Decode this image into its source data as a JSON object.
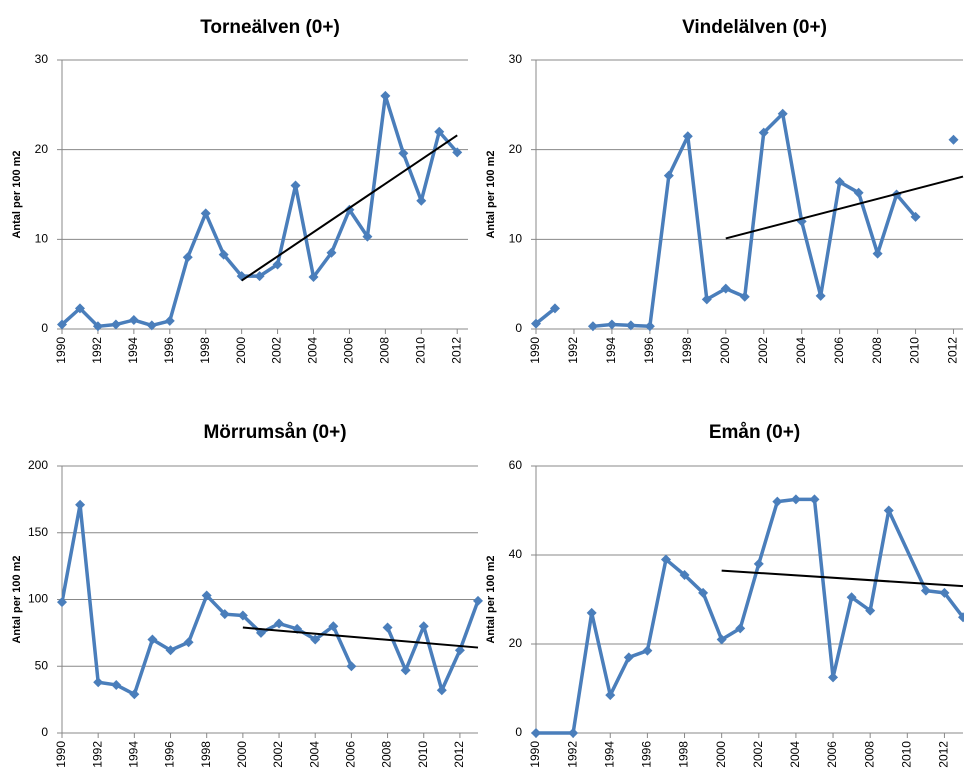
{
  "chart_data": [
    {
      "type": "line",
      "title": "Torneälven (0+)",
      "y_label": "Antal per 100 m2",
      "color": "#4a7ebb",
      "x": [
        1990,
        1991,
        1992,
        1993,
        1994,
        1995,
        1996,
        1997,
        1998,
        1999,
        2000,
        2001,
        2002,
        2003,
        2004,
        2005,
        2006,
        2007,
        2008,
        2009,
        2010,
        2011,
        2012
      ],
      "values": [
        0.5,
        2.3,
        0.3,
        0.5,
        1.0,
        0.4,
        0.9,
        8.0,
        12.9,
        8.3,
        5.9,
        5.9,
        7.2,
        16.0,
        5.8,
        8.5,
        13.3,
        10.3,
        26.0,
        19.6,
        14.3,
        22.0,
        19.7
      ],
      "trend": {
        "color": "#000000",
        "x": [
          2000,
          2012
        ],
        "values": [
          5.4,
          21.6
        ]
      },
      "xlim": [
        1990,
        2012.6
      ],
      "xticks": [
        1990,
        1992,
        1994,
        1996,
        1998,
        2000,
        2002,
        2004,
        2006,
        2008,
        2010,
        2012
      ],
      "ylim": [
        0,
        30
      ],
      "yticks": [
        0,
        10,
        20,
        30
      ],
      "grid": true
    },
    {
      "type": "line",
      "title": "Vindelälven (0+)",
      "y_label": "Antal per 100 m2",
      "color": "#4a7ebb",
      "x": [
        1990,
        1991,
        1992,
        1993,
        1994,
        1995,
        1996,
        1997,
        1998,
        1999,
        2000,
        2001,
        2002,
        2003,
        2004,
        2005,
        2006,
        2007,
        2008,
        2009,
        2010,
        2011,
        2012
      ],
      "values": [
        0.6,
        2.3,
        null,
        0.3,
        0.5,
        0.4,
        0.3,
        17.1,
        21.5,
        3.3,
        4.5,
        3.6,
        21.9,
        24.0,
        12.0,
        3.7,
        16.4,
        15.2,
        8.4,
        15.0,
        12.5,
        null,
        21.1
      ],
      "trend": {
        "color": "#000000",
        "x": [
          2000,
          2012.5
        ],
        "values": [
          10.1,
          17.0
        ]
      },
      "xlim": [
        1990,
        2012.5
      ],
      "xticks": [
        1990,
        1992,
        1994,
        1996,
        1998,
        2000,
        2002,
        2004,
        2006,
        2008,
        2010,
        2012
      ],
      "ylim": [
        0,
        30
      ],
      "yticks": [
        0,
        10,
        20,
        30
      ],
      "grid": true
    },
    {
      "type": "line",
      "title": "Mörrumsån (0+)",
      "y_label": "Antal per 100 m2",
      "color": "#4a7ebb",
      "x": [
        1990,
        1991,
        1992,
        1993,
        1994,
        1995,
        1996,
        1997,
        1998,
        1999,
        2000,
        2001,
        2002,
        2003,
        2004,
        2005,
        2006,
        2007,
        2008,
        2009,
        2010,
        2011,
        2012,
        2013
      ],
      "values": [
        98,
        171,
        38,
        36,
        29,
        70,
        62,
        68,
        103,
        89,
        88,
        75,
        82,
        78,
        70,
        80,
        50,
        null,
        79,
        47,
        80,
        32,
        62,
        99
      ],
      "trend": {
        "color": "#000000",
        "x": [
          2000,
          2013
        ],
        "values": [
          79,
          64
        ]
      },
      "xlim": [
        1990,
        2013
      ],
      "xticks": [
        1990,
        1992,
        1994,
        1996,
        1998,
        2000,
        2002,
        2004,
        2006,
        2008,
        2010,
        2012
      ],
      "ylim": [
        0,
        200
      ],
      "yticks": [
        0,
        50,
        100,
        150,
        200
      ],
      "grid": true
    },
    {
      "type": "line",
      "title": "Emån (0+)",
      "y_label": "Antal per 100 m2",
      "color": "#4a7ebb",
      "x": [
        1990,
        1992,
        1993,
        1994,
        1995,
        1996,
        1997,
        1998,
        1999,
        2000,
        2001,
        2002,
        2003,
        2004,
        2005,
        2006,
        2007,
        2008,
        2009,
        2011,
        2012,
        2013
      ],
      "values": [
        0,
        0,
        27,
        8.5,
        17,
        18.5,
        39,
        35.5,
        31.5,
        21,
        23.5,
        38,
        52,
        52.5,
        52.5,
        12.5,
        30.5,
        27.5,
        50,
        32,
        31.5,
        26
      ],
      "trend": {
        "color": "#000000",
        "x": [
          2000,
          2013
        ],
        "values": [
          36.5,
          33
        ]
      },
      "xlim": [
        1990,
        2013
      ],
      "xticks": [
        1990,
        1992,
        1994,
        1996,
        1998,
        2000,
        2002,
        2004,
        2006,
        2008,
        2010,
        2012
      ],
      "ylim": [
        0,
        60
      ],
      "yticks": [
        0,
        20,
        40,
        60
      ],
      "grid": true
    }
  ]
}
